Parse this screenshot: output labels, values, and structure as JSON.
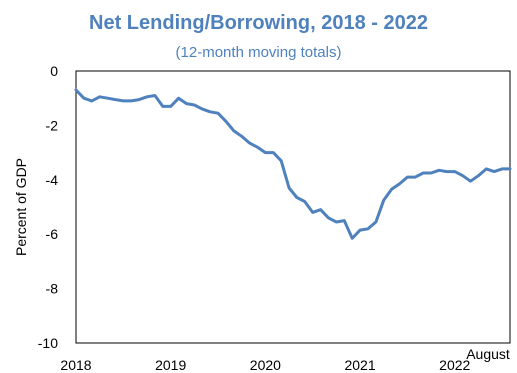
{
  "chart_data": {
    "type": "line",
    "title": "Net Lending/Borrowing, 2018 - 2022",
    "subtitle": "(12-month moving totals)",
    "ylabel": "Percent of GDP",
    "xlabel": "",
    "annotation": "August",
    "ylim": [
      -10,
      0
    ],
    "yticks": [
      0,
      -2,
      -4,
      -6,
      -8,
      -10
    ],
    "xticks": [
      "2018",
      "2019",
      "2020",
      "2021",
      "2022"
    ],
    "x_start": "2018-01",
    "x_end": "2022-08",
    "line_color": "#4f81bd",
    "grid": false,
    "series": [
      {
        "values": [
          -0.7,
          -1.0,
          -1.1,
          -0.95,
          -1.0,
          -1.05,
          -1.1,
          -1.1,
          -1.05,
          -0.95,
          -0.9,
          -1.3,
          -1.3,
          -1.0,
          -1.2,
          -1.25,
          -1.4,
          -1.5,
          -1.55,
          -1.85,
          -2.2,
          -2.4,
          -2.65,
          -2.8,
          -3.0,
          -3.0,
          -3.3,
          -4.3,
          -4.65,
          -4.8,
          -5.2,
          -5.1,
          -5.4,
          -5.55,
          -5.5,
          -6.15,
          -5.85,
          -5.8,
          -5.55,
          -4.75,
          -4.35,
          -4.15,
          -3.9,
          -3.9,
          -3.75,
          -3.75,
          -3.65,
          -3.7,
          -3.7,
          -3.85,
          -4.05,
          -3.85,
          -3.6,
          -3.7,
          -3.6,
          -3.6
        ]
      }
    ]
  }
}
